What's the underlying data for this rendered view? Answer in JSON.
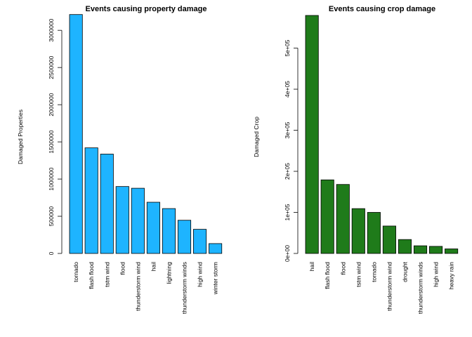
{
  "chart_data": [
    {
      "type": "bar",
      "title": "Events causing property damage",
      "xlabel": "",
      "ylabel": "Damaged Properties",
      "color": "#1eb4ff",
      "ylim": [
        0,
        3200000
      ],
      "yticks": [
        0,
        500000,
        1000000,
        1500000,
        2000000,
        2500000,
        3000000
      ],
      "ytick_labels": [
        "0",
        "500000",
        "1000000",
        "1500000",
        "2000000",
        "2500000",
        "3000000"
      ],
      "categories": [
        "tornado",
        "flash flood",
        "tstm wind",
        "flood",
        "thunderstorm wind",
        "hail",
        "lightning",
        "thunderstorm winds",
        "high wind",
        "winter storm"
      ],
      "values": [
        3212258,
        1420125,
        1335966,
        899938,
        876844,
        688693,
        603352,
        446293,
        324732,
        132721
      ]
    },
    {
      "type": "bar",
      "title": "Events causing crop damage",
      "xlabel": "",
      "ylabel": "Damaged Crop",
      "color": "#1f7b1a",
      "ylim": [
        0,
        579596
      ],
      "yticks": [
        0,
        100000,
        200000,
        300000,
        400000,
        500000
      ],
      "ytick_labels": [
        "0e+00",
        "1e+05",
        "2e+05",
        "3e+05",
        "4e+05",
        "5e+05"
      ],
      "categories": [
        "hail",
        "flash flood",
        "flood",
        "tstm wind",
        "tornado",
        "thunderstorm wind",
        "drought",
        "thunderstorm winds",
        "high wind",
        "heavy rain"
      ],
      "values": [
        579596,
        179200,
        168038,
        109203,
        100019,
        66791,
        33899,
        18685,
        17283,
        11123
      ]
    }
  ]
}
